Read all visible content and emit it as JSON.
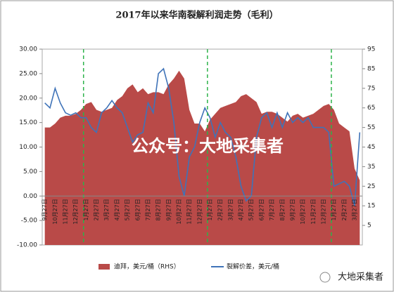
{
  "chart_data": {
    "type": "line-area",
    "title": "2017年以来华南裂解利润走势（毛利）",
    "categories": [
      "9月27日",
      null,
      "10月27日",
      null,
      "11月27日",
      null,
      "12月27日",
      null,
      "1月27日",
      null,
      "2月27日",
      null,
      "3月27日",
      null,
      "4月27日",
      null,
      "5月27日",
      null,
      "6月27日",
      null,
      "7月27日",
      null,
      "8月27日",
      null,
      "9月27日",
      null,
      "10月27日",
      null,
      "11月27日",
      null,
      "12月27日",
      null,
      "1月27日",
      null,
      "2月27日",
      null,
      "3月27日",
      null,
      "4月27日",
      null,
      "5月27日",
      null,
      "6月27日",
      null,
      "7月27日",
      null,
      "8月27日",
      null,
      "9月27日",
      null,
      "10月27日",
      null,
      "11月27日",
      null,
      "12月27日",
      null,
      "1月27日",
      null,
      "2月27日",
      null,
      "3月27日",
      null
    ],
    "series": [
      {
        "name": "迪拜，美元/桶（RHS）",
        "color": "#b94a48",
        "axis": "y2",
        "kind": "area",
        "values": [
          55,
          55,
          57,
          60,
          61,
          61,
          62,
          64,
          67,
          68,
          64,
          63,
          64,
          65,
          69,
          71,
          75,
          77,
          73,
          75,
          72,
          73,
          73,
          72,
          77,
          80,
          84,
          80,
          64,
          57,
          57,
          53,
          59,
          62,
          65,
          66,
          67,
          68,
          71,
          72,
          70,
          68,
          62,
          63,
          63,
          62,
          60,
          58,
          61,
          62,
          60,
          61,
          62,
          64,
          66,
          67,
          64,
          57,
          55,
          53,
          34,
          28
        ]
      },
      {
        "name": "裂解价差，美元/桶",
        "color": "#3f73b8",
        "axis": "y",
        "kind": "line",
        "values": [
          19,
          18,
          22,
          19,
          17,
          16.5,
          17,
          16,
          16,
          14,
          13,
          17,
          18,
          19.5,
          18,
          17,
          14,
          11,
          12.5,
          13,
          19,
          17,
          25,
          26,
          22,
          15,
          4,
          0,
          8,
          10,
          15,
          18,
          16,
          12,
          15,
          13,
          12,
          8,
          2,
          -1,
          0,
          12,
          16,
          17,
          14,
          17,
          14,
          17,
          15,
          16,
          15,
          16,
          14,
          14,
          14,
          13,
          2,
          2.5,
          3,
          2,
          -2,
          13
        ]
      }
    ],
    "ylim": [
      -10,
      30
    ],
    "yticks": [
      {
        "value": -10,
        "label": "-10.00"
      },
      {
        "value": -5,
        "label": "-5.00"
      },
      {
        "value": 0,
        "label": "0.00"
      },
      {
        "value": 5,
        "label": "5.00"
      },
      {
        "value": 10,
        "label": "10.00"
      },
      {
        "value": 15,
        "label": "15.00"
      },
      {
        "value": 20,
        "label": "20.00"
      },
      {
        "value": 25,
        "label": "25.00"
      },
      {
        "value": 30,
        "label": "30.00"
      }
    ],
    "y2lim": [
      -5,
      95
    ],
    "y2ticks": [
      5,
      15,
      25,
      35,
      45,
      55,
      65,
      75,
      85,
      95
    ],
    "annotations": [
      "公众号：大地采集者",
      "大地采集者"
    ]
  }
}
